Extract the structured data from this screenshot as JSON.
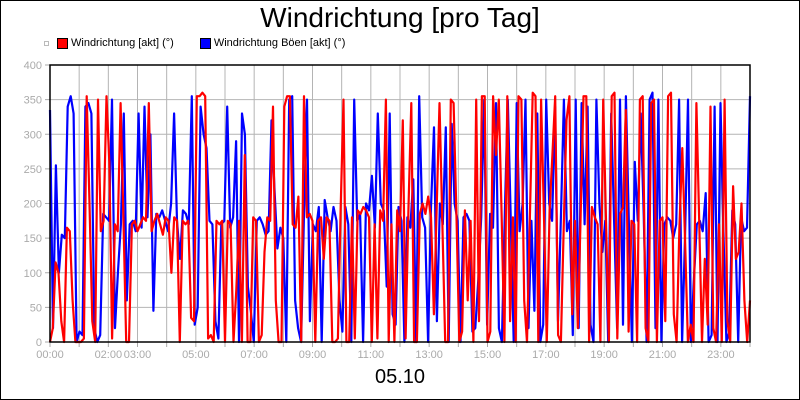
{
  "title": "Windrichtung [pro Tag]",
  "date_label": "05.10",
  "legend": [
    {
      "label": "Windrichtung [akt] (°)",
      "color": "#ff0000"
    },
    {
      "label": "Windrichtung Böen [akt] (°)",
      "color": "#0000ff"
    }
  ],
  "chart_data": {
    "type": "line",
    "title": "Windrichtung [pro Tag]",
    "xlabel": "05.10",
    "ylabel": "",
    "ylim": [
      0,
      400
    ],
    "yticks": [
      0,
      50,
      100,
      150,
      200,
      250,
      300,
      350,
      400
    ],
    "xticks": [
      "00:00",
      "02:00",
      "03:00",
      "05:00",
      "07:00",
      "09:00",
      "11:00",
      "13:00",
      "15:00",
      "17:00",
      "19:00",
      "21:00",
      "23:00"
    ],
    "grid": true,
    "legend_position": "top-left",
    "x_range_hours": [
      0,
      24
    ],
    "series": [
      {
        "name": "Windrichtung [akt] (°)",
        "color": "#ff0000",
        "values": [
          0,
          20,
          115,
          100,
          30,
          0,
          165,
          160,
          60,
          0,
          0,
          0,
          5,
          355,
          200,
          30,
          0,
          350,
          160,
          175,
          355,
          260,
          5,
          170,
          160,
          345,
          180,
          0,
          0,
          170,
          175,
          160,
          170,
          180,
          175,
          345,
          160,
          175,
          185,
          170,
          155,
          180,
          175,
          100,
          180,
          175,
          0,
          175,
          170,
          175,
          35,
          30,
          355,
          355,
          360,
          355,
          5,
          10,
          0,
          175,
          170,
          175,
          0,
          175,
          170,
          0,
          75,
          175,
          0,
          270,
          0,
          0,
          180,
          175,
          0,
          10,
          130,
          180,
          175,
          340,
          60,
          0,
          0,
          340,
          355,
          355,
          170,
          165,
          210,
          0,
          355,
          180,
          185,
          175,
          0,
          175,
          180,
          120,
          180,
          175,
          0,
          0,
          5,
          195,
          350,
          0,
          0,
          180,
          5,
          190,
          185,
          195,
          190,
          180,
          0,
          170,
          5,
          190,
          175,
          350,
          0,
          170,
          0,
          190,
          160,
          320,
          5,
          195,
          345,
          0,
          0,
          185,
          200,
          185,
          210,
          180,
          40,
          195,
          345,
          175,
          0,
          0,
          350,
          345,
          180,
          0,
          15,
          190,
          60,
          175,
          0,
          350,
          30,
          355,
          355,
          0,
          15,
          355,
          270,
          350,
          185,
          0,
          355,
          30,
          180,
          0,
          355,
          350,
          60,
          0,
          175,
          360,
          355,
          0,
          350,
          180,
          0,
          190,
          270,
          355,
          10,
          0,
          165,
          320,
          355,
          40,
          175,
          20,
          180,
          355,
          355,
          0,
          195,
          180,
          170,
          0,
          350,
          175,
          0,
          355,
          360,
          5,
          185,
          195,
          335,
          15,
          175,
          170,
          0,
          350,
          355,
          20,
          0,
          345,
          350,
          0,
          175,
          180,
          30,
          355,
          360,
          40,
          0,
          165,
          280,
          145,
          0,
          25,
          0,
          345,
          175,
          0,
          120,
          25,
          340,
          20,
          0,
          170,
          0,
          350,
          30,
          0,
          225,
          120,
          130,
          200,
          60,
          0,
          60
        ],
        "approx_max": 360
      },
      {
        "name": "Windrichtung Böen [akt] (°)",
        "color": "#0000ff",
        "values": [
          335,
          20,
          255,
          100,
          155,
          150,
          340,
          355,
          330,
          0,
          15,
          10,
          340,
          345,
          330,
          20,
          0,
          10,
          185,
          180,
          175,
          350,
          20,
          100,
          170,
          330,
          60,
          170,
          175,
          160,
          330,
          165,
          340,
          180,
          300,
          45,
          185,
          180,
          190,
          175,
          160,
          200,
          330,
          175,
          120,
          190,
          185,
          170,
          355,
          25,
          50,
          340,
          300,
          280,
          175,
          170,
          30,
          5,
          170,
          175,
          340,
          165,
          180,
          290,
          0,
          330,
          300,
          80,
          45,
          0,
          175,
          180,
          170,
          155,
          160,
          320,
          220,
          135,
          165,
          150,
          0,
          350,
          355,
          60,
          20,
          0,
          185,
          350,
          30,
          170,
          160,
          195,
          0,
          205,
          180,
          160,
          195,
          175,
          60,
          15,
          195,
          170,
          0,
          350,
          175,
          185,
          0,
          200,
          190,
          240,
          165,
          330,
          200,
          190,
          80,
          330,
          40,
          25,
          195,
          175,
          0,
          180,
          165,
          235,
          0,
          355,
          180,
          165,
          0,
          195,
          310,
          30,
          200,
          170,
          310,
          0,
          315,
          200,
          175,
          0,
          180,
          185,
          175,
          15,
          20,
          90,
          180,
          350,
          25,
          185,
          165,
          345,
          20,
          0,
          190,
          350,
          175,
          0,
          345,
          160,
          200,
          350,
          20,
          175,
          45,
          330,
          0,
          25,
          350,
          200,
          175,
          340,
          30,
          185,
          350,
          160,
          175,
          10,
          350,
          20,
          345,
          170,
          340,
          25,
          0,
          350,
          200,
          130,
          175,
          0,
          330,
          175,
          20,
          350,
          25,
          355,
          170,
          0,
          260,
          175,
          330,
          185,
          0,
          350,
          360,
          20,
          350,
          0,
          170,
          180,
          175,
          150,
          170,
          350,
          0,
          150,
          350,
          0,
          90,
          170,
          175,
          160,
          215,
          0,
          10,
          340,
          0,
          345,
          160,
          0,
          15,
          190,
          170,
          0,
          180,
          160,
          165,
          355
        ]
      }
    ]
  }
}
